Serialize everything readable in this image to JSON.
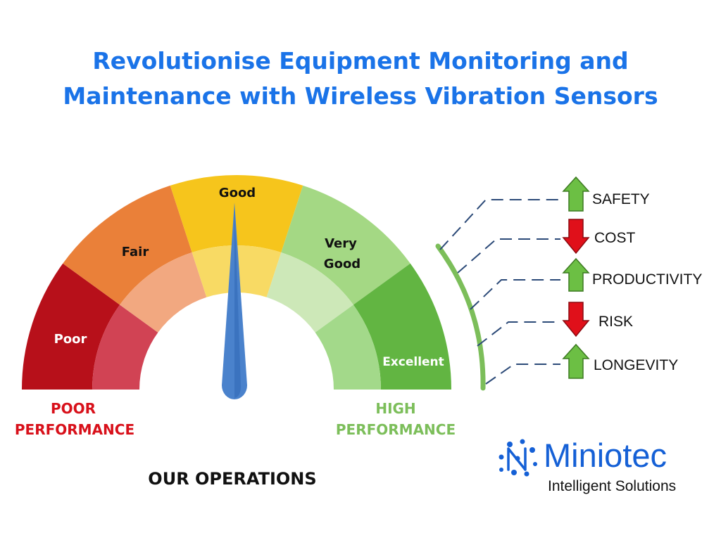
{
  "title": {
    "line1": "Revolutionise Equipment Monitoring and",
    "line2": "Maintenance with Wireless Vibration Sensors"
  },
  "gauge": {
    "segments": [
      {
        "label": "Poor",
        "outer_color": "#b7101a",
        "inner_color": "#d14354",
        "label_color": "#ffffff"
      },
      {
        "label": "Fair",
        "outer_color": "#ea8039",
        "inner_color": "#f2a880",
        "label_color": "#111111"
      },
      {
        "label": "Good",
        "outer_color": "#f6c51c",
        "inner_color": "#f8da64",
        "label_color": "#111111"
      },
      {
        "label_lines": [
          "Very",
          "Good"
        ],
        "outer_color": "#a4d884",
        "inner_color": "#cde8b8",
        "label_color": "#111111"
      },
      {
        "label": "Excellent",
        "outer_color": "#62b542",
        "inner_color": "#a3d98a",
        "label_color": "#ffffff"
      }
    ],
    "needle_color": "#4a82cc",
    "needle_points_to": "Good",
    "poor_label": [
      "POOR",
      "PERFORMANCE"
    ],
    "poor_color": "#d8101a",
    "high_label": [
      "HIGH",
      "PERFORMANCE"
    ],
    "high_color": "#7cbe5a",
    "caption": "OUR OPERATIONS"
  },
  "outcomes": [
    {
      "label": "SAFETY",
      "direction": "up",
      "icon": "arrow-up-icon"
    },
    {
      "label": "COST",
      "direction": "down",
      "icon": "arrow-down-icon"
    },
    {
      "label": "PRODUCTIVITY",
      "direction": "up",
      "icon": "arrow-up-icon"
    },
    {
      "label": "RISK",
      "direction": "down",
      "icon": "arrow-down-icon"
    },
    {
      "label": "LONGEVITY",
      "direction": "up",
      "icon": "arrow-up-icon"
    }
  ],
  "colors": {
    "title": "#1a73e8",
    "arrow_up": "#6cbf44",
    "arrow_down": "#e0101a",
    "connector": "#2c4a78",
    "bracket": "#7cbe5a"
  },
  "logo": {
    "name": "Miniotec",
    "tagline": "Intelligent Solutions",
    "icon": "molecule-icon",
    "color": "#1560d6"
  }
}
